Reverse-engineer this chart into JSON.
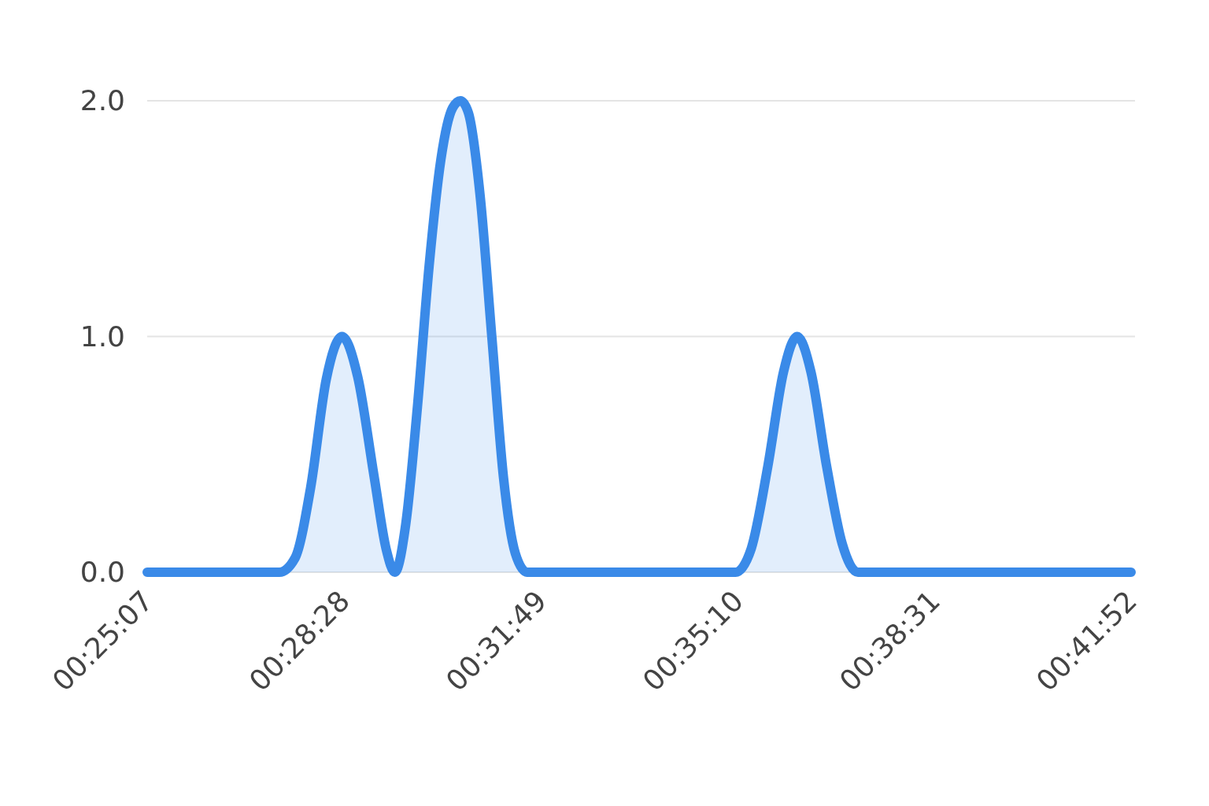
{
  "chart_data": {
    "type": "area",
    "color": "#3a8ae8",
    "x": [
      0.41861,
      0.45611,
      0.46056,
      0.465,
      0.46944,
      0.47389,
      0.47833,
      0.48306,
      0.48639,
      0.48889,
      0.49194,
      0.49528,
      0.49861,
      0.50194,
      0.50528,
      0.5075,
      0.50972,
      0.51306,
      0.51639,
      0.51972,
      0.52306,
      0.52639,
      0.58556,
      0.59,
      0.59472,
      0.59917,
      0.60306,
      0.60694,
      0.61139,
      0.61583,
      0.62028,
      0.69778
    ],
    "values": [
      0,
      0,
      0.06,
      0.36,
      0.82,
      1.0,
      0.83,
      0.4,
      0.1,
      0,
      0.2,
      0.7,
      1.3,
      1.75,
      1.97,
      2.0,
      1.95,
      1.6,
      1.0,
      0.4,
      0.08,
      0,
      0,
      0.1,
      0.45,
      0.85,
      1.0,
      0.85,
      0.45,
      0.12,
      0,
      0
    ],
    "xlim": [
      0.41861,
      0.69778
    ],
    "xticks": [
      {
        "value": 0.41861,
        "label": "00:25:07"
      },
      {
        "value": 0.47444,
        "label": "00:28:28"
      },
      {
        "value": 0.53028,
        "label": "00:31:49"
      },
      {
        "value": 0.58611,
        "label": "00:35:10"
      },
      {
        "value": 0.64194,
        "label": "00:38:31"
      },
      {
        "value": 0.69778,
        "label": "00:41:52"
      }
    ],
    "ylim": [
      0,
      2
    ],
    "yticks": [
      {
        "value": 0,
        "label": "0.0"
      },
      {
        "value": 1,
        "label": "1.0"
      },
      {
        "value": 2,
        "label": "2.0"
      }
    ],
    "grid": "y"
  }
}
